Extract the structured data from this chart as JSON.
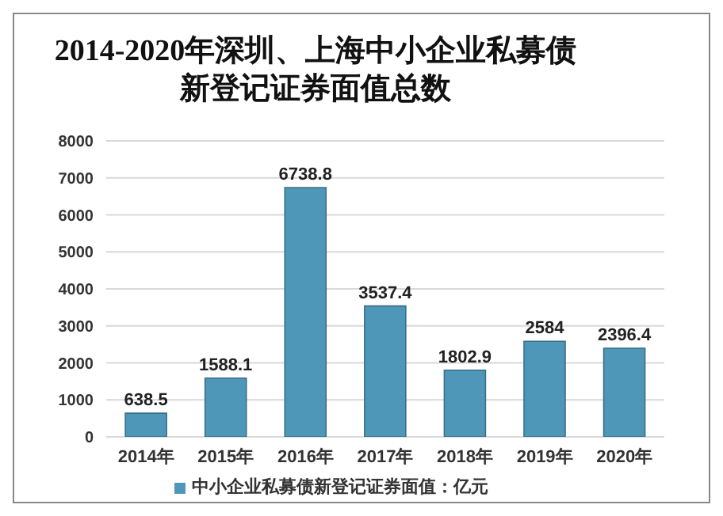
{
  "chart_data": {
    "type": "bar",
    "title": "2014-2020年深圳、上海中小企业私募债新登记证券面值总数",
    "categories": [
      "2014年",
      "2015年",
      "2016年",
      "2017年",
      "2018年",
      "2019年",
      "2020年"
    ],
    "series": [
      {
        "name": "中小企业私募债新登记证券面值：亿元",
        "color": "#4f97b8",
        "values": [
          638.5,
          1588.1,
          6738.8,
          3537.4,
          1802.9,
          2584,
          2396.4
        ]
      }
    ],
    "ylim": [
      0,
      8000
    ],
    "yticks": [
      0,
      1000,
      2000,
      3000,
      4000,
      5000,
      6000,
      7000,
      8000
    ],
    "grid": "y",
    "legend": "bottom",
    "data_labels": true
  }
}
